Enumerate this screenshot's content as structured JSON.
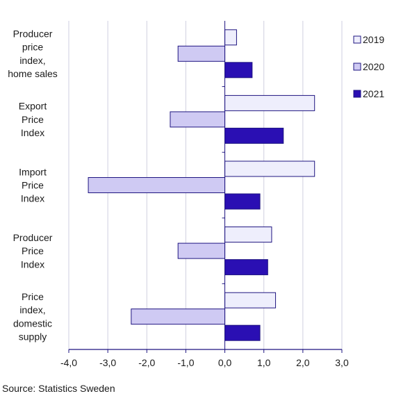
{
  "chart_data": {
    "type": "bar",
    "orientation": "horizontal",
    "categories": [
      "Producer price index, home sales",
      "Export Price Index",
      "Import Price Index",
      "Producer Price Index",
      "Price index, domestic supply"
    ],
    "category_label_lines": [
      [
        "Producer",
        "price",
        "index,",
        "home sales"
      ],
      [
        "Export",
        "Price",
        "Index"
      ],
      [
        "Import",
        "Price",
        "Index"
      ],
      [
        "Producer",
        "Price",
        "Index"
      ],
      [
        "Price",
        "index,",
        "domestic",
        "supply"
      ]
    ],
    "series": [
      {
        "name": "2019",
        "values": [
          0.3,
          2.3,
          2.3,
          1.2,
          1.3
        ],
        "color": "#eeeefc"
      },
      {
        "name": "2020",
        "values": [
          -1.2,
          -1.4,
          -3.5,
          -1.2,
          -2.4
        ],
        "color": "#cfcaf3"
      },
      {
        "name": "2021",
        "values": [
          0.7,
          1.5,
          0.9,
          1.1,
          0.9
        ],
        "color": "#2a0fb3"
      }
    ],
    "xlim": [
      -4.0,
      3.0
    ],
    "xticks": [
      -4.0,
      -3.0,
      -2.0,
      -1.0,
      0.0,
      1.0,
      2.0,
      3.0
    ],
    "xtick_labels": [
      "-4,0",
      "-3,0",
      "-2,0",
      "-1,0",
      "0,0",
      "1,0",
      "2,0",
      "3,0"
    ],
    "title": "",
    "xlabel": "",
    "ylabel": "",
    "grid": "vertical",
    "legend_position": "right",
    "bar_border_color": "#1e1480"
  },
  "source": "Source: Statistics Sweden"
}
